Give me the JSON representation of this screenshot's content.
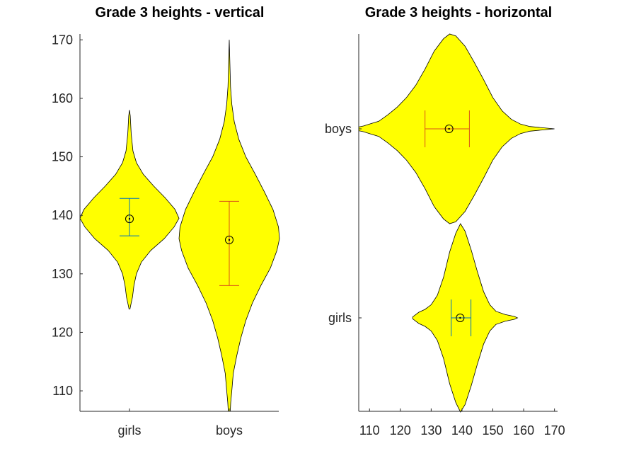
{
  "chart_data": [
    {
      "type": "violin",
      "orientation": "vertical",
      "title": "Grade 3 heights - vertical",
      "xlabel": "",
      "ylabel": "",
      "categories": [
        "girls",
        "boys"
      ],
      "ylim": [
        106.5,
        171
      ],
      "yticks": [
        110,
        120,
        130,
        140,
        150,
        160,
        170
      ],
      "grid": false,
      "fill_color": "#ffff00",
      "series": [
        {
          "category": "girls",
          "mean": 139.4,
          "error_low": 136.5,
          "error_high": 142.9,
          "errorbar_color": "#0072bd",
          "range": [
            124,
            158
          ],
          "profile": [
            [
              124,
              0.01
            ],
            [
              125,
              0.035
            ],
            [
              126,
              0.06
            ],
            [
              128,
              0.09
            ],
            [
              130,
              0.14
            ],
            [
              132,
              0.24
            ],
            [
              134,
              0.43
            ],
            [
              136,
              0.7
            ],
            [
              138,
              0.9
            ],
            [
              139.5,
              1.0
            ],
            [
              141,
              0.92
            ],
            [
              143,
              0.72
            ],
            [
              145,
              0.49
            ],
            [
              147,
              0.28
            ],
            [
              149,
              0.14
            ],
            [
              151,
              0.07
            ],
            [
              154,
              0.035
            ],
            [
              157,
              0.015
            ],
            [
              158,
              0.0
            ]
          ]
        },
        {
          "category": "boys",
          "mean": 135.8,
          "error_low": 128,
          "error_high": 142.4,
          "errorbar_color": "#d95319",
          "range": [
            106.5,
            170
          ],
          "profile": [
            [
              106.5,
              0.02
            ],
            [
              108,
              0.03
            ],
            [
              110,
              0.05
            ],
            [
              113,
              0.08
            ],
            [
              116,
              0.15
            ],
            [
              119,
              0.23
            ],
            [
              122,
              0.33
            ],
            [
              125,
              0.46
            ],
            [
              128,
              0.63
            ],
            [
              131,
              0.82
            ],
            [
              134,
              0.95
            ],
            [
              136,
              1.0
            ],
            [
              138,
              0.98
            ],
            [
              141,
              0.87
            ],
            [
              144,
              0.7
            ],
            [
              147,
              0.52
            ],
            [
              150,
              0.33
            ],
            [
              153,
              0.19
            ],
            [
              156,
              0.1
            ],
            [
              159,
              0.05
            ],
            [
              162,
              0.025
            ],
            [
              166,
              0.012
            ],
            [
              170,
              0.0
            ]
          ]
        }
      ]
    },
    {
      "type": "violin",
      "orientation": "horizontal",
      "title": "Grade 3 heights - horizontal",
      "xlabel": "",
      "ylabel": "",
      "categories": [
        "boys",
        "girls"
      ],
      "xlim": [
        106.5,
        171
      ],
      "xticks": [
        110,
        120,
        130,
        140,
        150,
        160,
        170
      ],
      "grid": false,
      "fill_color": "#ffff00",
      "series": [
        {
          "category": "boys",
          "mean": 135.8,
          "error_low": 128,
          "error_high": 142.4,
          "errorbar_color": "#d95319",
          "range": [
            106.5,
            170
          ],
          "profile": [
            [
              106.5,
              0.02
            ],
            [
              108,
              0.03
            ],
            [
              110,
              0.05
            ],
            [
              113,
              0.08
            ],
            [
              116,
              0.15
            ],
            [
              119,
              0.23
            ],
            [
              122,
              0.33
            ],
            [
              125,
              0.46
            ],
            [
              128,
              0.63
            ],
            [
              131,
              0.82
            ],
            [
              134,
              0.95
            ],
            [
              136,
              1.0
            ],
            [
              138,
              0.98
            ],
            [
              141,
              0.87
            ],
            [
              144,
              0.7
            ],
            [
              147,
              0.52
            ],
            [
              150,
              0.33
            ],
            [
              153,
              0.19
            ],
            [
              156,
              0.1
            ],
            [
              159,
              0.05
            ],
            [
              162,
              0.025
            ],
            [
              166,
              0.012
            ],
            [
              170,
              0.0
            ]
          ]
        },
        {
          "category": "girls",
          "mean": 139.4,
          "error_low": 136.5,
          "error_high": 142.9,
          "errorbar_color": "#0072bd",
          "range": [
            124,
            158
          ],
          "profile": [
            [
              124,
              0.01
            ],
            [
              125,
              0.035
            ],
            [
              126,
              0.06
            ],
            [
              128,
              0.09
            ],
            [
              130,
              0.14
            ],
            [
              132,
              0.24
            ],
            [
              134,
              0.43
            ],
            [
              136,
              0.7
            ],
            [
              138,
              0.9
            ],
            [
              139.5,
              1.0
            ],
            [
              141,
              0.92
            ],
            [
              143,
              0.72
            ],
            [
              145,
              0.49
            ],
            [
              147,
              0.28
            ],
            [
              149,
              0.14
            ],
            [
              151,
              0.07
            ],
            [
              154,
              0.035
            ],
            [
              157,
              0.015
            ],
            [
              158,
              0.0
            ]
          ]
        }
      ]
    }
  ]
}
